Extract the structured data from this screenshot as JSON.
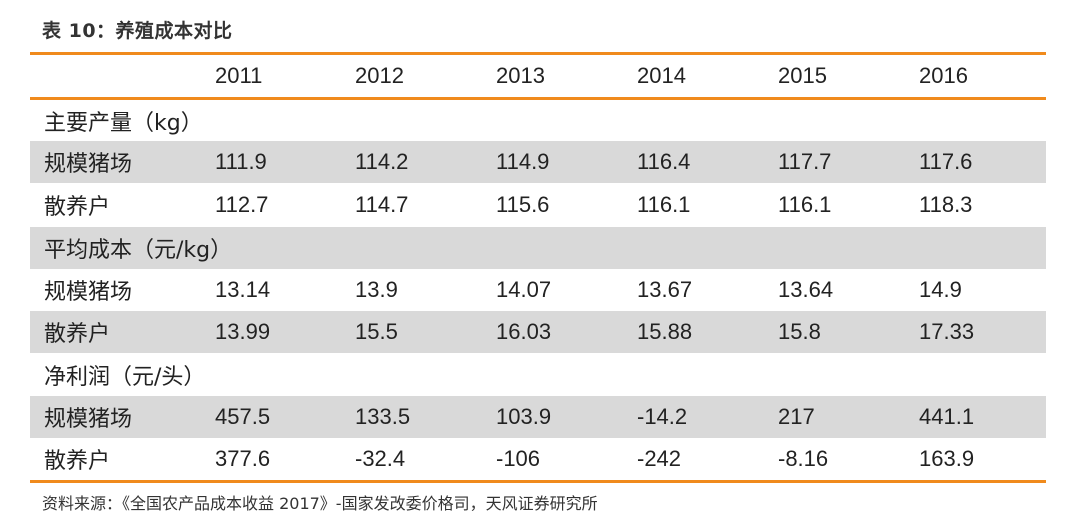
{
  "table": {
    "title": "表 10：养殖成本对比",
    "years": [
      "2011",
      "2012",
      "2013",
      "2014",
      "2015",
      "2016"
    ],
    "sections": [
      {
        "heading": "主要产量（kg）",
        "rows": [
          {
            "label": "规模猪场",
            "values": [
              "111.9",
              "114.2",
              "114.9",
              "116.4",
              "117.7",
              "117.6"
            ]
          },
          {
            "label": "散养户",
            "values": [
              "112.7",
              "114.7",
              "115.6",
              "116.1",
              "116.1",
              "118.3"
            ]
          }
        ]
      },
      {
        "heading": "平均成本（元/kg）",
        "rows": [
          {
            "label": "规模猪场",
            "values": [
              "13.14",
              "13.9",
              "14.07",
              "13.67",
              "13.64",
              "14.9"
            ]
          },
          {
            "label": "散养户",
            "values": [
              "13.99",
              "15.5",
              "16.03",
              "15.88",
              "15.8",
              "17.33"
            ]
          }
        ]
      },
      {
        "heading": "净利润（元/头）",
        "rows": [
          {
            "label": "规模猪场",
            "values": [
              "457.5",
              "133.5",
              "103.9",
              "-14.2",
              "217",
              "441.1"
            ]
          },
          {
            "label": "散养户",
            "values": [
              "377.6",
              "-32.4",
              "-106",
              "-242",
              "-8.16",
              "163.9"
            ]
          }
        ]
      }
    ],
    "source": "资料来源：《全国农产品成本收益 2017》-国家发改委价格司，天风证券研究所",
    "colors": {
      "rule": "#f08a1c",
      "shade": "#d9d9d9"
    }
  }
}
